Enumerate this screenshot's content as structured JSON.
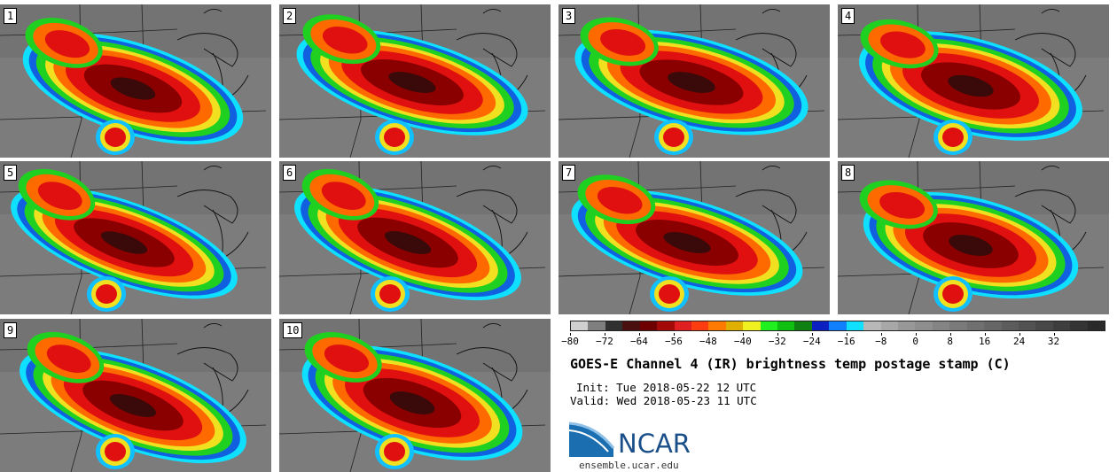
{
  "panels": [
    {
      "label": "1",
      "cx": 150,
      "cy": 95,
      "rot": 18,
      "rx": 120,
      "ry": 42
    },
    {
      "label": "2",
      "cx": 150,
      "cy": 88,
      "rot": 16,
      "rx": 125,
      "ry": 40
    },
    {
      "label": "3",
      "cx": 150,
      "cy": 88,
      "rot": 14,
      "rx": 125,
      "ry": 42
    },
    {
      "label": "4",
      "cx": 150,
      "cy": 92,
      "rot": 15,
      "rx": 120,
      "ry": 44
    },
    {
      "label": "5",
      "cx": 140,
      "cy": 92,
      "rot": 20,
      "rx": 125,
      "ry": 38
    },
    {
      "label": "6",
      "cx": 145,
      "cy": 92,
      "rot": 20,
      "rx": 125,
      "ry": 40
    },
    {
      "label": "7",
      "cx": 145,
      "cy": 92,
      "rot": 16,
      "rx": 125,
      "ry": 40
    },
    {
      "label": "8",
      "cx": 150,
      "cy": 95,
      "rot": 14,
      "rx": 115,
      "ry": 44
    },
    {
      "label": "9",
      "cx": 150,
      "cy": 98,
      "rot": 20,
      "rx": 125,
      "ry": 40
    },
    {
      "label": "10",
      "cx": 150,
      "cy": 95,
      "rot": 18,
      "rx": 120,
      "ry": 44
    }
  ],
  "colorbar": {
    "colors": [
      "#d0d0d0",
      "#7f7f7f",
      "#303030",
      "#4a1010",
      "#6e0000",
      "#a50a0a",
      "#e02020",
      "#ff3b10",
      "#ff7a00",
      "#e0b000",
      "#f0f020",
      "#20f020",
      "#10c010",
      "#108010",
      "#0a20c0",
      "#1080ff",
      "#10e0ff",
      "#b8b8b8",
      "#a8a8a8",
      "#989898",
      "#8e8e8e",
      "#848484",
      "#7a7a7a",
      "#707070",
      "#666666",
      "#5c5c5c",
      "#525252",
      "#484848",
      "#3e3e3e",
      "#343434",
      "#2a2a2a"
    ],
    "tick_labels": [
      "−80",
      "−72",
      "−64",
      "−56",
      "−48",
      "−40",
      "−32",
      "−24",
      "−16",
      "−8",
      "0",
      "8",
      "16",
      "24",
      "32"
    ],
    "min": -80,
    "max": 40
  },
  "title": "GOES-E Channel 4 (IR) brightness temp postage stamp (C)",
  "init": "Init: Tue 2018-05-22 12 UTC",
  "valid": "Valid: Wed 2018-05-23 11 UTC",
  "logo": {
    "text": "NCAR",
    "site": "ensemble.ucar.edu",
    "color": "#1b4f8a"
  }
}
